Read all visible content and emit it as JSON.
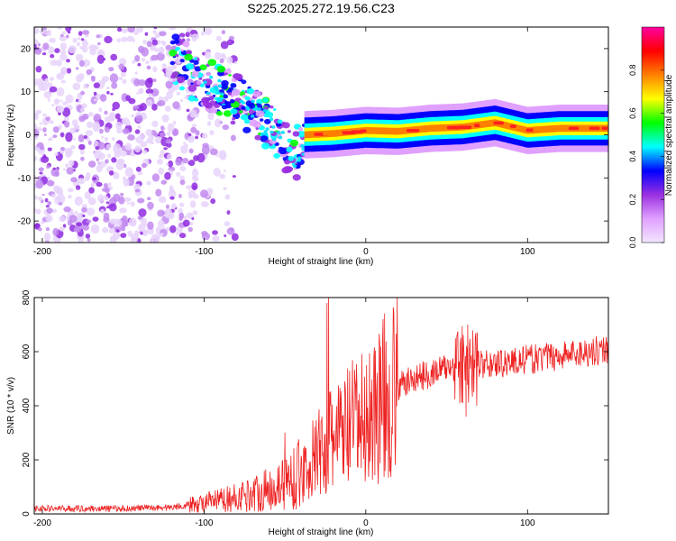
{
  "figure_title": "S225.2025.272.19.56.C23",
  "chart_data": [
    {
      "type": "heatmap",
      "title": "S225.2025.272.19.56.C23",
      "xlabel": "Height of straight line (km)",
      "ylabel": "Frequency (Hz)",
      "xlim": [
        -205,
        150
      ],
      "ylim": [
        -25,
        25
      ],
      "xticks": [
        -200,
        -100,
        0,
        100
      ],
      "yticks": [
        -20,
        -10,
        0,
        10,
        20
      ],
      "colorbar": {
        "label": "Normalized spectral amplitude",
        "range": [
          0.0,
          1.0
        ],
        "ticks": [
          0.0,
          0.2,
          0.4,
          0.6,
          0.8
        ],
        "tick_labels": [
          "0.0",
          "0.2",
          "0.4",
          "0.6",
          "0.8"
        ],
        "colors": [
          "#f2e6ff",
          "#e0a0ff",
          "#9a30e0",
          "#0000ff",
          "#00ffff",
          "#00ff00",
          "#ffff00",
          "#ff8000",
          "#ff0000",
          "#ff00a0"
        ]
      },
      "ridge": [
        {
          "x": -38,
          "y": 0.0
        },
        {
          "x": -20,
          "y": 0.3
        },
        {
          "x": 0,
          "y": 1.0
        },
        {
          "x": 20,
          "y": 0.8
        },
        {
          "x": 40,
          "y": 1.5
        },
        {
          "x": 60,
          "y": 1.8
        },
        {
          "x": 80,
          "y": 2.8
        },
        {
          "x": 100,
          "y": 1.0
        },
        {
          "x": 120,
          "y": 1.5
        },
        {
          "x": 150,
          "y": 1.5
        }
      ],
      "dispersive_arc": [
        {
          "x": -120,
          "y": 18
        },
        {
          "x": -100,
          "y": 12
        },
        {
          "x": -80,
          "y": 8
        },
        {
          "x": -60,
          "y": 2
        },
        {
          "x": -45,
          "y": -5
        },
        {
          "x": -38,
          "y": -2
        }
      ],
      "noise_region_xlim": [
        -205,
        -105
      ]
    },
    {
      "type": "line",
      "xlabel": "Height of straight line (km)",
      "ylabel": "SNR (10 * v/v)",
      "xlim": [
        -205,
        150
      ],
      "ylim": [
        0,
        800
      ],
      "xticks": [
        -200,
        -100,
        0,
        100
      ],
      "yticks": [
        0,
        200,
        400,
        600,
        800
      ],
      "series": [
        {
          "name": "SNR",
          "color": "#ee2222",
          "trend": [
            {
              "x": -205,
              "y": 20
            },
            {
              "x": -150,
              "y": 20
            },
            {
              "x": -120,
              "y": 25
            },
            {
              "x": -100,
              "y": 40
            },
            {
              "x": -80,
              "y": 60
            },
            {
              "x": -60,
              "y": 90
            },
            {
              "x": -40,
              "y": 150
            },
            {
              "x": -25,
              "y": 250
            },
            {
              "x": -10,
              "y": 320
            },
            {
              "x": 0,
              "y": 350
            },
            {
              "x": 10,
              "y": 420
            },
            {
              "x": 20,
              "y": 470
            },
            {
              "x": 30,
              "y": 500
            },
            {
              "x": 50,
              "y": 540
            },
            {
              "x": 70,
              "y": 550
            },
            {
              "x": 100,
              "y": 570
            },
            {
              "x": 125,
              "y": 590
            },
            {
              "x": 150,
              "y": 610
            }
          ],
          "spikes": [
            {
              "x": -23,
              "y": 800
            },
            {
              "x": -24,
              "y": 780
            },
            {
              "x": -50,
              "y": 300
            },
            {
              "x": -7,
              "y": 470
            },
            {
              "x": 63,
              "y": 700
            },
            {
              "x": 62,
              "y": 360
            }
          ]
        }
      ]
    }
  ]
}
